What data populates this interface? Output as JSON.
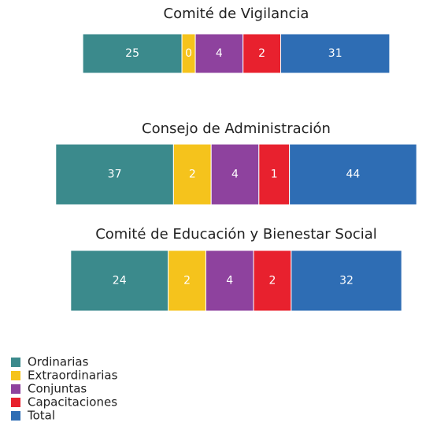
{
  "chart_data": {
    "type": "stacked-bar",
    "categories": [
      "Comité de Vigilancia",
      "Consejo de Administración",
      "Comité de Educación y Bienestar Social"
    ],
    "series": [
      {
        "name": "Ordinarias",
        "color": "#3b8a8c",
        "values": [
          25,
          37,
          24
        ]
      },
      {
        "name": "Extraordinarias",
        "color": "#f5c31c",
        "values": [
          0,
          2,
          2
        ]
      },
      {
        "name": "Conjuntas",
        "color": "#8e429e",
        "values": [
          4,
          4,
          4
        ]
      },
      {
        "name": "Capacitaciones",
        "color": "#e8212e",
        "values": [
          2,
          1,
          2
        ]
      },
      {
        "name": "Total",
        "color": "#2e6db4",
        "values": [
          31,
          44,
          32
        ]
      }
    ]
  }
}
